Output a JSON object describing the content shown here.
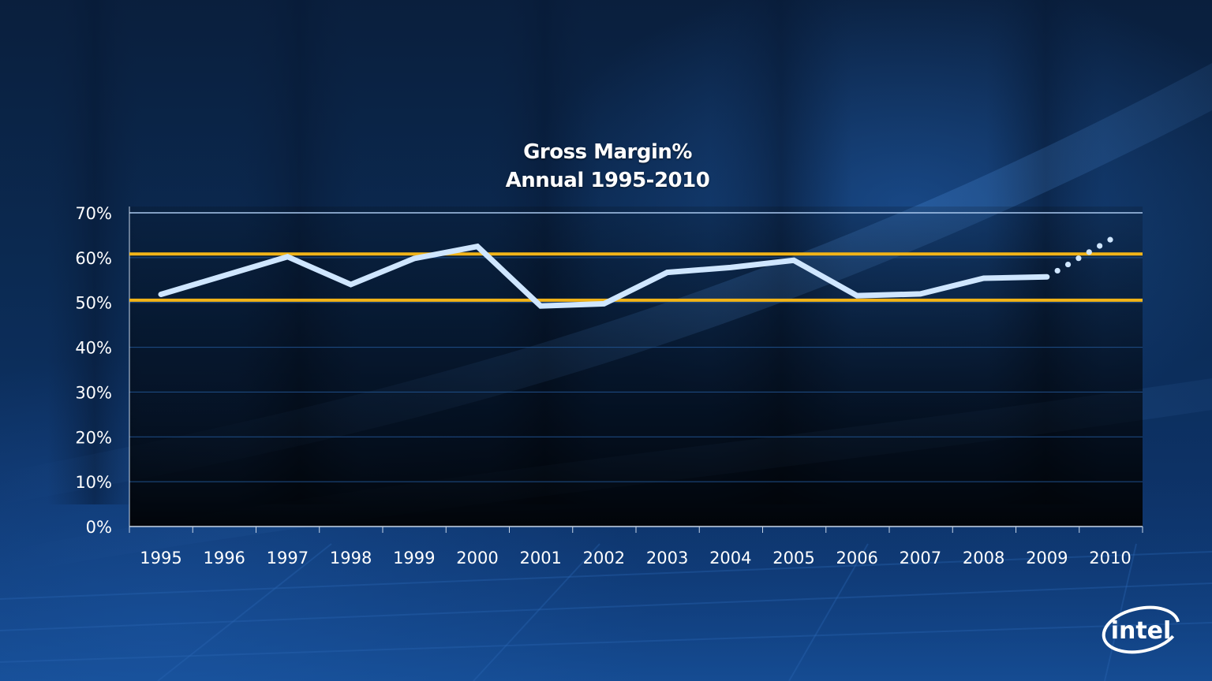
{
  "chart_data": {
    "type": "line",
    "title_line1": "Gross Margin%",
    "title_line2": "Annual 1995-2010",
    "categories": [
      "1995",
      "1996",
      "1997",
      "1998",
      "1999",
      "2000",
      "2001",
      "2002",
      "2003",
      "2004",
      "2005",
      "2006",
      "2007",
      "2008",
      "2009",
      "2010"
    ],
    "series": [
      {
        "values": [
          51.8,
          56.0,
          60.2,
          54.0,
          59.8,
          62.5,
          49.2,
          49.7,
          56.7,
          57.8,
          59.4,
          51.5,
          51.9,
          55.4,
          55.7,
          null
        ],
        "color": "#cfe6ff"
      }
    ],
    "projection": {
      "from": [
        2009,
        55.7
      ],
      "to": [
        2010,
        64.0
      ],
      "style": "dotted",
      "color": "#cfe6ff"
    },
    "reference_lines": [
      {
        "value": 60.8,
        "color": "#f2b418"
      },
      {
        "value": 50.5,
        "color": "#f2b418"
      }
    ],
    "ylim": [
      0,
      70
    ],
    "yticks": [
      "0%",
      "10%",
      "20%",
      "30%",
      "40%",
      "50%",
      "60%",
      "70%"
    ],
    "ytick_values": [
      0,
      10,
      20,
      30,
      40,
      50,
      60,
      70
    ],
    "grid": true,
    "xlabel": "",
    "ylabel": ""
  },
  "brand": {
    "logo_text": "intel",
    "logo_color": "#ffffff"
  },
  "colors": {
    "grid": "#1f4f8a",
    "top_line": "#a9c8ee",
    "axis": "#c8d6e8"
  }
}
